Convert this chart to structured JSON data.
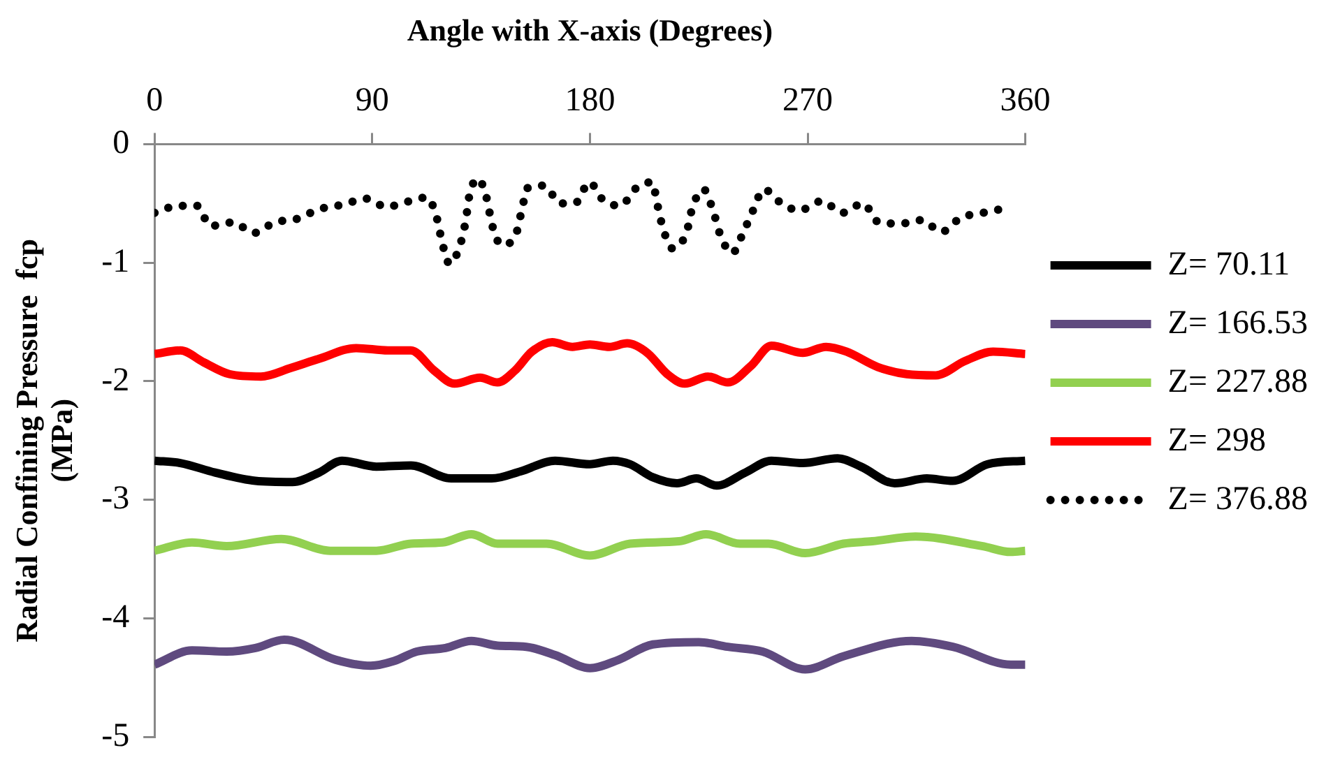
{
  "chart_data": {
    "type": "line",
    "xlabel": "Angle with X-axis (Degrees)",
    "ylabel": "Radial Confining Pressure  fcp\n(MPa)",
    "xlim": [
      0,
      360
    ],
    "xticks": [
      0,
      90,
      180,
      270,
      360
    ],
    "ylim": [
      -5,
      0
    ],
    "yticks": [
      0,
      -1,
      -2,
      -3,
      -4,
      -5
    ],
    "grid": false,
    "legend": "right",
    "marker": "none",
    "series": [
      {
        "name": "Z= 70.11",
        "color": "#000000",
        "line_style": "solid",
        "x": [
          0,
          10.7,
          25,
          41.7,
          57,
          68,
          77.5,
          91.7,
          106,
          122.7,
          139.4,
          151.3,
          165.6,
          179.9,
          189.5,
          196.6,
          206,
          216,
          224,
          232.4,
          244.3,
          255,
          268,
          282.4,
          292,
          306,
          319.3,
          330,
          344.4,
          360
        ],
        "values": [
          -2.67,
          -2.69,
          -2.77,
          -2.84,
          -2.85,
          -2.77,
          -2.67,
          -2.72,
          -2.71,
          -2.82,
          -2.82,
          -2.76,
          -2.67,
          -2.7,
          -2.67,
          -2.7,
          -2.81,
          -2.86,
          -2.82,
          -2.88,
          -2.77,
          -2.67,
          -2.69,
          -2.65,
          -2.72,
          -2.86,
          -2.82,
          -2.84,
          -2.7,
          -2.67
        ]
      },
      {
        "name": "Z= 166.53",
        "color": "#5f4a7f",
        "line_style": "solid",
        "x": [
          0,
          15.5,
          29.8,
          41.7,
          53.6,
          75,
          89.4,
          99,
          108.4,
          120.3,
          131,
          141.8,
          153.7,
          165.6,
          180,
          191.8,
          206,
          225,
          237,
          251.4,
          269,
          284.8,
          313,
          330,
          354,
          360
        ],
        "values": [
          -4.39,
          -4.27,
          -4.28,
          -4.25,
          -4.18,
          -4.35,
          -4.4,
          -4.36,
          -4.28,
          -4.25,
          -4.19,
          -4.23,
          -4.24,
          -4.31,
          -4.42,
          -4.35,
          -4.22,
          -4.2,
          -4.24,
          -4.28,
          -4.43,
          -4.32,
          -4.19,
          -4.24,
          -4.39,
          -4.39
        ]
      },
      {
        "name": "Z= 227.88",
        "color": "#92d050",
        "line_style": "solid",
        "x": [
          0,
          15.5,
          29.8,
          52.4,
          72.7,
          91.7,
          106,
          119,
          131,
          141.8,
          162,
          180,
          196.6,
          216.8,
          228,
          242,
          253.8,
          269,
          284.8,
          296.7,
          314.6,
          342,
          354,
          360
        ],
        "values": [
          -3.43,
          -3.36,
          -3.39,
          -3.33,
          -3.43,
          -3.43,
          -3.37,
          -3.36,
          -3.29,
          -3.37,
          -3.37,
          -3.47,
          -3.37,
          -3.35,
          -3.29,
          -3.37,
          -3.37,
          -3.45,
          -3.37,
          -3.35,
          -3.31,
          -3.39,
          -3.44,
          -3.43
        ]
      },
      {
        "name": "Z= 298",
        "color": "#ff0000",
        "line_style": "solid",
        "x": [
          0,
          10.7,
          20.3,
          31,
          44,
          56,
          68,
          83.4,
          96.5,
          106,
          115.6,
          124,
          134.6,
          141.8,
          149,
          156,
          164.4,
          172.8,
          180,
          188,
          195.4,
          203.7,
          212,
          219.2,
          228.8,
          237,
          246.6,
          255,
          268,
          277.6,
          286,
          299,
          311,
          323,
          335,
          346.7,
          360
        ],
        "values": [
          -1.77,
          -1.74,
          -1.84,
          -1.94,
          -1.96,
          -1.89,
          -1.81,
          -1.72,
          -1.74,
          -1.74,
          -1.91,
          -2.02,
          -1.97,
          -2.01,
          -1.91,
          -1.75,
          -1.67,
          -1.71,
          -1.69,
          -1.71,
          -1.68,
          -1.76,
          -1.94,
          -2.02,
          -1.96,
          -2.01,
          -1.87,
          -1.7,
          -1.76,
          -1.71,
          -1.75,
          -1.88,
          -1.94,
          -1.95,
          -1.83,
          -1.75,
          -1.77
        ]
      },
      {
        "name": "Z= 376.88",
        "color": "#000000",
        "line_style": "dotted",
        "x": [
          0,
          9.8,
          17.6,
          23,
          32.6,
          41,
          49.6,
          58.9,
          67.9,
          77.9,
          87.5,
          95.8,
          103.7,
          112.7,
          116.8,
          118.9,
          122,
          126.5,
          128.7,
          130.1,
          133.7,
          137.5,
          139.4,
          143.5,
          149.4,
          151.8,
          154.2,
          161.1,
          167.8,
          174.4,
          179.7,
          185.4,
          192.5,
          199.2,
          205.7,
          208,
          210.2,
          214.2,
          220,
          222.3,
          226.9,
          230.9,
          233.8,
          238.8,
          243.3,
          247.4,
          251.9,
          258.6,
          266.4,
          276,
          284.3,
          292.9,
          299.5,
          308.6,
          317.2,
          325.3,
          333.4,
          342.4,
          352
        ],
        "values": [
          -0.58,
          -0.52,
          -0.52,
          -0.69,
          -0.66,
          -0.75,
          -0.66,
          -0.63,
          -0.55,
          -0.51,
          -0.46,
          -0.53,
          -0.49,
          -0.45,
          -0.63,
          -0.83,
          -1.01,
          -0.84,
          -0.64,
          -0.44,
          -0.29,
          -0.47,
          -0.67,
          -0.85,
          -0.76,
          -0.56,
          -0.37,
          -0.35,
          -0.5,
          -0.49,
          -0.32,
          -0.47,
          -0.52,
          -0.37,
          -0.32,
          -0.52,
          -0.71,
          -0.88,
          -0.74,
          -0.54,
          -0.38,
          -0.56,
          -0.76,
          -0.92,
          -0.75,
          -0.56,
          -0.38,
          -0.49,
          -0.56,
          -0.48,
          -0.58,
          -0.5,
          -0.66,
          -0.67,
          -0.64,
          -0.74,
          -0.62,
          -0.58,
          -0.54
        ]
      }
    ]
  }
}
